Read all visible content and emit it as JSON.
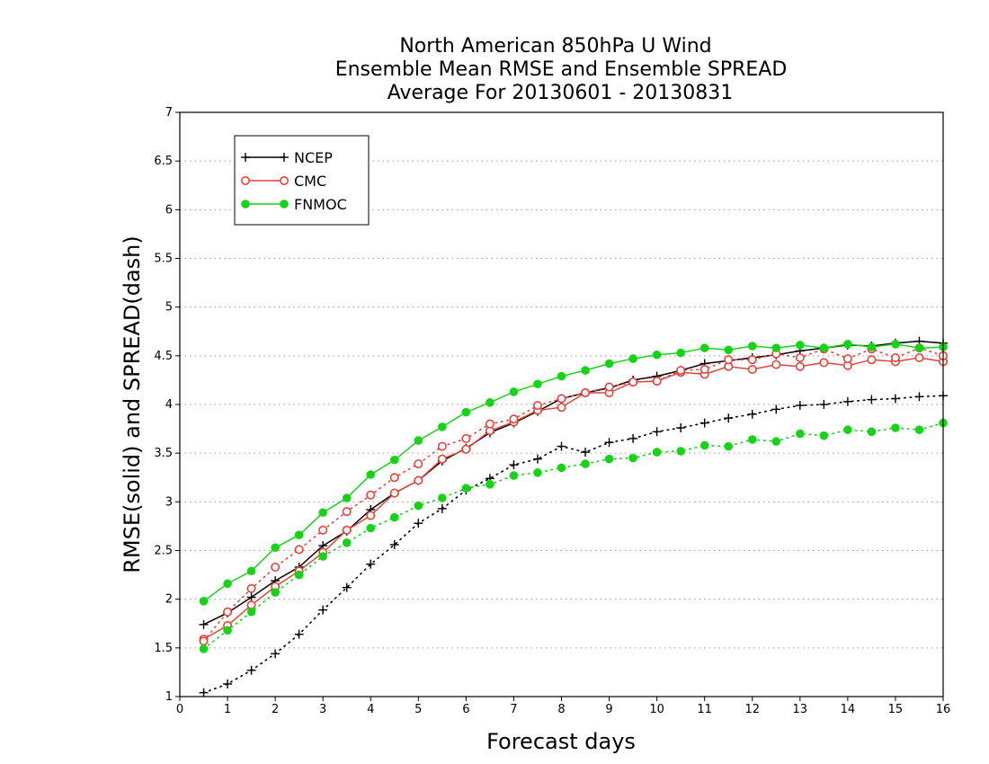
{
  "chart_data": {
    "type": "line",
    "title": [
      "North American 850hPa U Wind",
      "Ensemble Mean RMSE and Ensemble SPREAD",
      "Average For 20130601 - 20130831"
    ],
    "xlabel": "Forecast days",
    "ylabel": "RMSE(solid) and SPREAD(dash)",
    "xlim": [
      0,
      16
    ],
    "ylim": [
      1,
      7
    ],
    "xticks": [
      "0",
      "1",
      "2",
      "3",
      "4",
      "5",
      "6",
      "7",
      "8",
      "9",
      "10",
      "11",
      "12",
      "13",
      "14",
      "15",
      "16"
    ],
    "yticks": [
      "1",
      "1.5",
      "2",
      "2.5",
      "3",
      "3.5",
      "4",
      "4.5",
      "5",
      "5.5",
      "6",
      "6.5",
      "7"
    ],
    "grid": "horizontal dotted",
    "legend_position": "top-left",
    "x": [
      0.5,
      1,
      1.5,
      2,
      2.5,
      3,
      3.5,
      4,
      4.5,
      5,
      5.5,
      6,
      6.5,
      7,
      7.5,
      8,
      8.5,
      9,
      9.5,
      10,
      10.5,
      11,
      11.5,
      12,
      12.5,
      13,
      13.5,
      14,
      14.5,
      15,
      15.5,
      16
    ],
    "series": [
      {
        "name": "NCEP",
        "color": "#000000",
        "marker": "plus",
        "rmse": [
          1.74,
          1.86,
          2.02,
          2.19,
          2.33,
          2.55,
          2.7,
          2.92,
          3.09,
          3.22,
          3.42,
          3.55,
          3.71,
          3.81,
          3.93,
          4.06,
          4.12,
          4.17,
          4.25,
          4.29,
          4.35,
          4.42,
          4.45,
          4.48,
          4.51,
          4.55,
          4.58,
          4.61,
          4.6,
          4.63,
          4.65,
          4.63
        ],
        "spread": [
          1.04,
          1.13,
          1.27,
          1.44,
          1.64,
          1.89,
          2.12,
          2.36,
          2.56,
          2.78,
          2.93,
          3.12,
          3.24,
          3.38,
          3.44,
          3.57,
          3.51,
          3.61,
          3.65,
          3.72,
          3.76,
          3.81,
          3.86,
          3.9,
          3.95,
          3.99,
          4.0,
          4.03,
          4.05,
          4.06,
          4.08,
          4.09
        ]
      },
      {
        "name": "CMC",
        "color": "#e8413a",
        "marker": "open-circle",
        "rmse": [
          1.59,
          1.73,
          1.94,
          2.13,
          2.29,
          2.48,
          2.71,
          2.86,
          3.09,
          3.22,
          3.44,
          3.54,
          3.73,
          3.82,
          3.94,
          3.97,
          4.12,
          4.12,
          4.23,
          4.24,
          4.33,
          4.31,
          4.39,
          4.36,
          4.41,
          4.39,
          4.43,
          4.4,
          4.46,
          4.44,
          4.48,
          4.44
        ],
        "spread": [
          1.57,
          1.87,
          2.11,
          2.33,
          2.51,
          2.71,
          2.9,
          3.07,
          3.25,
          3.39,
          3.57,
          3.65,
          3.8,
          3.85,
          3.99,
          4.06,
          4.12,
          4.18,
          4.23,
          4.24,
          4.35,
          4.36,
          4.46,
          4.46,
          4.52,
          4.48,
          4.57,
          4.47,
          4.57,
          4.48,
          4.58,
          4.5
        ]
      },
      {
        "name": "FNMOC",
        "color": "#17d317",
        "marker": "filled-circle",
        "rmse": [
          1.98,
          2.16,
          2.29,
          2.53,
          2.66,
          2.89,
          3.04,
          3.28,
          3.43,
          3.63,
          3.77,
          3.92,
          4.02,
          4.13,
          4.21,
          4.29,
          4.35,
          4.42,
          4.47,
          4.51,
          4.53,
          4.58,
          4.56,
          4.6,
          4.58,
          4.61,
          4.58,
          4.62,
          4.59,
          4.62,
          4.58,
          4.59
        ],
        "spread": [
          1.49,
          1.68,
          1.87,
          2.07,
          2.25,
          2.44,
          2.58,
          2.73,
          2.84,
          2.96,
          3.04,
          3.14,
          3.18,
          3.27,
          3.3,
          3.35,
          3.39,
          3.44,
          3.45,
          3.51,
          3.52,
          3.58,
          3.57,
          3.64,
          3.62,
          3.7,
          3.68,
          3.74,
          3.72,
          3.76,
          3.74,
          3.81
        ]
      }
    ]
  }
}
